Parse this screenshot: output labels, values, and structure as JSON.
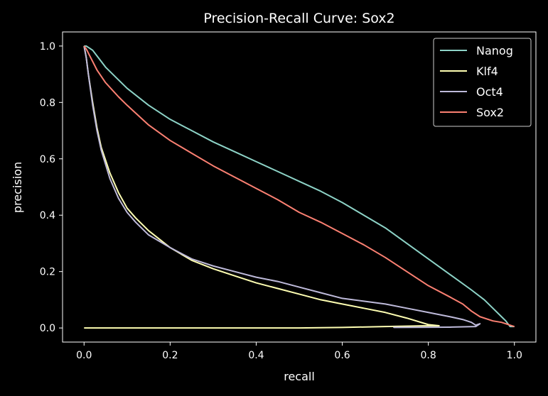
{
  "chart_data": {
    "type": "line",
    "title": "Precision-Recall Curve: Sox2",
    "xlabel": "recall",
    "ylabel": "precision",
    "xlim": [
      -0.05,
      1.05
    ],
    "ylim": [
      -0.05,
      1.05
    ],
    "xticks": [
      0.0,
      0.2,
      0.4,
      0.6,
      0.8,
      1.0
    ],
    "xtick_labels": [
      "0.0",
      "0.2",
      "0.4",
      "0.6",
      "0.8",
      "1.0"
    ],
    "yticks": [
      0.0,
      0.2,
      0.4,
      0.6,
      0.8,
      1.0
    ],
    "ytick_labels": [
      "0.0",
      "0.2",
      "0.4",
      "0.6",
      "0.8",
      "1.0"
    ],
    "grid": false,
    "legend_position": "top-right",
    "background": "#000000",
    "series": [
      {
        "name": "Nanog",
        "color": "#8dd3c7",
        "points": [
          [
            0.0,
            1.0
          ],
          [
            0.005,
            1.0
          ],
          [
            0.01,
            0.995
          ],
          [
            0.02,
            0.985
          ],
          [
            0.03,
            0.965
          ],
          [
            0.05,
            0.925
          ],
          [
            0.08,
            0.88
          ],
          [
            0.1,
            0.85
          ],
          [
            0.15,
            0.79
          ],
          [
            0.2,
            0.74
          ],
          [
            0.25,
            0.7
          ],
          [
            0.3,
            0.66
          ],
          [
            0.35,
            0.625
          ],
          [
            0.4,
            0.59
          ],
          [
            0.45,
            0.555
          ],
          [
            0.5,
            0.52
          ],
          [
            0.55,
            0.485
          ],
          [
            0.6,
            0.445
          ],
          [
            0.65,
            0.4
          ],
          [
            0.7,
            0.355
          ],
          [
            0.75,
            0.3
          ],
          [
            0.8,
            0.245
          ],
          [
            0.85,
            0.19
          ],
          [
            0.9,
            0.135
          ],
          [
            0.93,
            0.1
          ],
          [
            0.95,
            0.07
          ],
          [
            0.97,
            0.04
          ],
          [
            0.98,
            0.025
          ],
          [
            0.985,
            0.015
          ],
          [
            0.99,
            0.005
          ],
          [
            1.0,
            0.005
          ]
        ]
      },
      {
        "name": "Klf4",
        "color": "#ffffb3",
        "points": [
          [
            0.0,
            0.0
          ],
          [
            0.5,
            0.0
          ],
          [
            0.6,
            0.002
          ],
          [
            0.7,
            0.005
          ],
          [
            0.8,
            0.008
          ],
          [
            0.825,
            0.008
          ],
          [
            0.8,
            0.012
          ],
          [
            0.75,
            0.035
          ],
          [
            0.7,
            0.055
          ],
          [
            0.65,
            0.07
          ],
          [
            0.6,
            0.085
          ],
          [
            0.55,
            0.1
          ],
          [
            0.5,
            0.12
          ],
          [
            0.45,
            0.14
          ],
          [
            0.4,
            0.16
          ],
          [
            0.35,
            0.185
          ],
          [
            0.3,
            0.21
          ],
          [
            0.25,
            0.24
          ],
          [
            0.2,
            0.285
          ],
          [
            0.15,
            0.345
          ],
          [
            0.12,
            0.39
          ],
          [
            0.1,
            0.425
          ],
          [
            0.08,
            0.48
          ],
          [
            0.06,
            0.55
          ],
          [
            0.04,
            0.64
          ],
          [
            0.03,
            0.71
          ],
          [
            0.02,
            0.8
          ],
          [
            0.01,
            0.9
          ],
          [
            0.005,
            0.96
          ],
          [
            0.0,
            1.0
          ]
        ]
      },
      {
        "name": "Oct4",
        "color": "#bebada",
        "points": [
          [
            0.0,
            1.0
          ],
          [
            0.005,
            0.96
          ],
          [
            0.01,
            0.9
          ],
          [
            0.02,
            0.79
          ],
          [
            0.03,
            0.7
          ],
          [
            0.04,
            0.63
          ],
          [
            0.06,
            0.53
          ],
          [
            0.08,
            0.46
          ],
          [
            0.1,
            0.41
          ],
          [
            0.12,
            0.375
          ],
          [
            0.15,
            0.33
          ],
          [
            0.2,
            0.285
          ],
          [
            0.25,
            0.245
          ],
          [
            0.3,
            0.22
          ],
          [
            0.35,
            0.2
          ],
          [
            0.4,
            0.18
          ],
          [
            0.45,
            0.165
          ],
          [
            0.5,
            0.145
          ],
          [
            0.55,
            0.125
          ],
          [
            0.6,
            0.105
          ],
          [
            0.65,
            0.095
          ],
          [
            0.7,
            0.085
          ],
          [
            0.75,
            0.07
          ],
          [
            0.8,
            0.055
          ],
          [
            0.85,
            0.04
          ],
          [
            0.88,
            0.03
          ],
          [
            0.9,
            0.02
          ],
          [
            0.91,
            0.01
          ],
          [
            0.92,
            0.015
          ],
          [
            0.91,
            0.005
          ],
          [
            0.85,
            0.003
          ],
          [
            0.72,
            0.002
          ],
          [
            0.72,
            0.0
          ]
        ]
      },
      {
        "name": "Sox2",
        "color": "#fb8072",
        "points": [
          [
            0.0,
            1.0
          ],
          [
            0.005,
            0.99
          ],
          [
            0.01,
            0.975
          ],
          [
            0.02,
            0.945
          ],
          [
            0.03,
            0.915
          ],
          [
            0.05,
            0.87
          ],
          [
            0.08,
            0.82
          ],
          [
            0.1,
            0.79
          ],
          [
            0.15,
            0.72
          ],
          [
            0.2,
            0.665
          ],
          [
            0.25,
            0.62
          ],
          [
            0.3,
            0.575
          ],
          [
            0.35,
            0.535
          ],
          [
            0.4,
            0.495
          ],
          [
            0.45,
            0.455
          ],
          [
            0.5,
            0.41
          ],
          [
            0.55,
            0.375
          ],
          [
            0.6,
            0.335
          ],
          [
            0.65,
            0.295
          ],
          [
            0.7,
            0.25
          ],
          [
            0.75,
            0.2
          ],
          [
            0.8,
            0.15
          ],
          [
            0.85,
            0.11
          ],
          [
            0.88,
            0.085
          ],
          [
            0.9,
            0.06
          ],
          [
            0.92,
            0.04
          ],
          [
            0.95,
            0.025
          ],
          [
            0.97,
            0.02
          ],
          [
            0.98,
            0.015
          ],
          [
            0.99,
            0.01
          ],
          [
            1.0,
            0.005
          ]
        ]
      }
    ]
  }
}
